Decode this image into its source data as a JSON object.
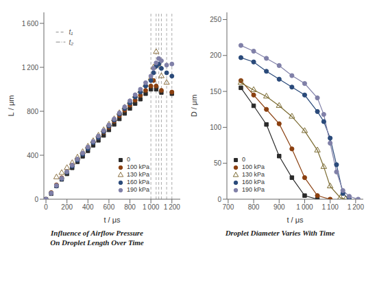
{
  "chart_data": [
    {
      "type": "scatter",
      "title": "Influence of Airflow Pressure\nOn Droplet Length Over Time",
      "x_label": "t / μs",
      "y_label": "L / μm",
      "xlim": [
        -20,
        1280
      ],
      "ylim": [
        0,
        1700
      ],
      "xticks": [
        0,
        200,
        400,
        600,
        800,
        {
          "value": 1000,
          "label": "1 000"
        },
        {
          "value": 1200,
          "label": "1 200"
        }
      ],
      "yticks": [
        0,
        400,
        800,
        {
          "value": 1200,
          "label": "1 200"
        },
        {
          "value": 1600,
          "label": "1 600"
        }
      ],
      "grid": false,
      "legend": "lower right",
      "series": [
        {
          "name": "0",
          "color": "#2a2a2a",
          "marker": "square",
          "x": [
            0,
            50,
            100,
            150,
            200,
            250,
            300,
            350,
            400,
            450,
            500,
            550,
            600,
            650,
            700,
            750,
            800,
            850,
            900,
            950,
            1000,
            1050,
            1100,
            1200
          ],
          "values": [
            0,
            50,
            120,
            180,
            230,
            285,
            340,
            390,
            440,
            490,
            535,
            580,
            630,
            680,
            730,
            780,
            825,
            870,
            910,
            960,
            1000,
            1000,
            970,
            960
          ]
        },
        {
          "name": "100 kPa",
          "color": "#8b4010",
          "marker": "circle",
          "x": [
            0,
            50,
            100,
            150,
            200,
            250,
            300,
            350,
            400,
            450,
            500,
            550,
            600,
            650,
            700,
            750,
            800,
            850,
            900,
            950,
            1000,
            1025,
            1050,
            1100,
            1200
          ],
          "values": [
            0,
            60,
            130,
            195,
            250,
            310,
            360,
            415,
            465,
            515,
            560,
            610,
            655,
            710,
            760,
            810,
            855,
            900,
            945,
            990,
            1030,
            1080,
            1030,
            990,
            975
          ]
        },
        {
          "name": "130 kPa",
          "color": "#8b7040",
          "marker": "open-triangle",
          "x": [
            100,
            150,
            200,
            250,
            300,
            350,
            400,
            450,
            500,
            550,
            600,
            650,
            700,
            750,
            800,
            850,
            900,
            950,
            1000,
            1025,
            1050,
            1075,
            1100,
            1150
          ],
          "values": [
            200,
            240,
            285,
            330,
            380,
            430,
            480,
            530,
            580,
            630,
            680,
            730,
            785,
            835,
            885,
            940,
            985,
            1040,
            1100,
            1200,
            1340,
            1220,
            1120,
            1060
          ]
        },
        {
          "name": "160 kPa",
          "color": "#2a4a7a",
          "marker": "circle",
          "x": [
            0,
            50,
            100,
            150,
            200,
            250,
            300,
            350,
            400,
            450,
            500,
            550,
            600,
            650,
            700,
            750,
            800,
            850,
            900,
            950,
            1000,
            1025,
            1050,
            1075,
            1100,
            1150,
            1200
          ],
          "values": [
            0,
            55,
            120,
            185,
            245,
            300,
            355,
            410,
            460,
            515,
            560,
            615,
            665,
            720,
            775,
            825,
            875,
            930,
            975,
            1030,
            1080,
            1150,
            1210,
            1230,
            1190,
            1150,
            1120
          ]
        },
        {
          "name": "190 kPa",
          "color": "#8080a8",
          "marker": "circle",
          "x": [
            0,
            50,
            100,
            150,
            200,
            250,
            300,
            350,
            400,
            450,
            500,
            550,
            600,
            650,
            700,
            750,
            800,
            850,
            900,
            950,
            1000,
            1025,
            1050,
            1075,
            1100,
            1150,
            1200
          ],
          "values": [
            0,
            55,
            125,
            190,
            250,
            310,
            365,
            420,
            475,
            525,
            575,
            625,
            675,
            730,
            785,
            840,
            895,
            950,
            1000,
            1060,
            1120,
            1190,
            1240,
            1280,
            1260,
            1220,
            1230
          ]
        }
      ],
      "vlines": [
        1000,
        1050,
        1075,
        1100,
        1150,
        1200
      ],
      "annotations": [
        {
          "text": "t₁",
          "x": [
            95,
            185
          ],
          "y": 1520,
          "line_style": "dashed"
        },
        {
          "text": "t₂",
          "x": [
            95,
            185
          ],
          "y": 1430,
          "line_style": "dashdot"
        }
      ]
    },
    {
      "type": "line",
      "title": "Droplet Diameter Varies With Time",
      "x_label": "t / μs",
      "y_label": "D / μm",
      "xlim": [
        695,
        1230
      ],
      "ylim": [
        0,
        260
      ],
      "xticks": [
        700,
        800,
        900,
        {
          "value": 1000,
          "label": "1 000"
        },
        {
          "value": 1100,
          "label": "1 100"
        },
        {
          "value": 1200,
          "label": "1 200"
        }
      ],
      "yticks": [
        0,
        50,
        100,
        150,
        200,
        250
      ],
      "grid": false,
      "legend": "lower left",
      "series": [
        {
          "name": "0",
          "color": "#2a2a2a",
          "marker": "square",
          "x": [
            750,
            800,
            850,
            900,
            950,
            1000,
            1050
          ],
          "values": [
            155,
            130,
            104,
            60,
            30,
            5,
            0
          ]
        },
        {
          "name": "100 kPa",
          "color": "#8b4010",
          "marker": "circle",
          "x": [
            750,
            800,
            850,
            900,
            950,
            1000,
            1050,
            1100
          ],
          "values": [
            165,
            145,
            125,
            105,
            70,
            30,
            5,
            0
          ]
        },
        {
          "name": "130 kPa",
          "color": "#7a6a30",
          "marker": "open-triangle",
          "x": [
            750,
            800,
            850,
            900,
            950,
            1000,
            1050,
            1075,
            1100,
            1140,
            1160
          ],
          "values": [
            162,
            152,
            143,
            130,
            115,
            95,
            68,
            45,
            18,
            2,
            0
          ]
        },
        {
          "name": "160 kPa",
          "color": "#2a4a7a",
          "marker": "circle",
          "x": [
            750,
            800,
            850,
            900,
            950,
            1000,
            1050,
            1075,
            1100,
            1125,
            1150,
            1175
          ],
          "values": [
            197,
            191,
            178,
            167,
            156,
            145,
            122,
            108,
            85,
            48,
            8,
            0
          ]
        },
        {
          "name": "190 kPa",
          "color": "#8080a8",
          "marker": "circle",
          "x": [
            750,
            800,
            850,
            900,
            950,
            1000,
            1050,
            1075,
            1100,
            1125,
            1150,
            1175,
            1210
          ],
          "values": [
            214,
            206,
            196,
            186,
            172,
            161,
            141,
            118,
            78,
            38,
            12,
            4,
            0
          ]
        }
      ]
    }
  ]
}
